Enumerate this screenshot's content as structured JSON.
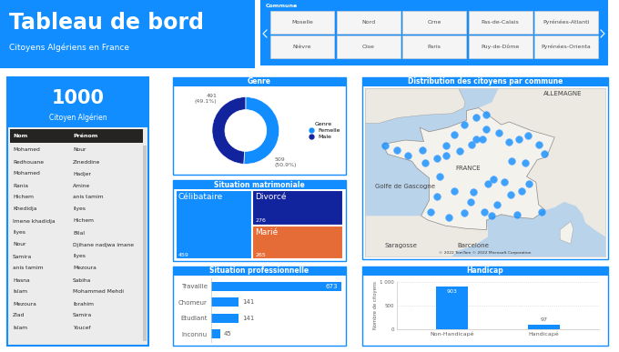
{
  "header": {
    "title": "Tableau de bord",
    "subtitle": "Citoyens Algériens en France"
  },
  "slicer": {
    "title": "Commune",
    "items": [
      "Moselle",
      "Nord",
      "Orne",
      "Pas-de-Calais",
      "Pyrénées-Atlanti",
      "Nièvre",
      "Oise",
      "Paris",
      "Puy-de-Dôme",
      "Pyrénées-Orienta"
    ]
  },
  "card": {
    "value": 1000,
    "label": "Citoyen Algérien"
  },
  "table": {
    "columns": [
      "Nom",
      "Prénom"
    ],
    "rows": [
      [
        "Mohamed",
        "Nour"
      ],
      [
        "Redhouane",
        "Zineddine"
      ],
      [
        "Mohamed",
        "Hadjer"
      ],
      [
        "Rania",
        "Amine"
      ],
      [
        "Hichem",
        "anis tamim"
      ],
      [
        "Khedidja",
        "Ilyes"
      ],
      [
        "Imene khadidja",
        "Hichem"
      ],
      [
        "Ilyes",
        "Bilal"
      ],
      [
        "Nour",
        "Djihane nadjwa imane"
      ],
      [
        "Samira",
        "Ilyes"
      ],
      [
        "anis tamim",
        "Mezoura"
      ],
      [
        "Hasna",
        "Sabiha"
      ],
      [
        "Islam",
        "Mohammed Mehdi"
      ],
      [
        "Mezoura",
        "Ibrahim"
      ],
      [
        "Ziad",
        "Samira"
      ],
      [
        "Islam",
        "Youcef"
      ]
    ]
  },
  "chart_data": [
    {
      "type": "pie",
      "title": "Genre",
      "categories": [
        "Femelle",
        "Male"
      ],
      "values": [
        509,
        491
      ],
      "value_labels": [
        "509 (50.9%)",
        "491 (49.1%)"
      ],
      "colors": [
        "#118dff",
        "#12239e"
      ],
      "legend": "right",
      "legend_title": "Genre",
      "data_labels": true
    },
    {
      "type": "treemap",
      "title": "Situation matrimoniale",
      "categories": [
        "Célibataire",
        "Divorcé",
        "Marié"
      ],
      "values": [
        459,
        276,
        265
      ],
      "colors": [
        "#118dff",
        "#12239e",
        "#e66c37"
      ],
      "data_labels": true
    },
    {
      "type": "bar",
      "orientation": "horizontal",
      "title": "Situation professionnelle",
      "categories": [
        "Travaille",
        "Chomeur",
        "Etudiant",
        "Inconnu"
      ],
      "values": [
        673,
        141,
        141,
        45
      ],
      "color": "#118dff",
      "xlim": [
        0,
        673
      ],
      "data_labels": true,
      "tick_labels": "y"
    },
    {
      "type": "map",
      "title": "Distribution des citoyens par commune",
      "color": "#118dff",
      "xlim": [
        -6,
        12
      ],
      "ylim": [
        40.5,
        52.5
      ],
      "tick_labels": false,
      "points": [
        [
          -4.5,
          48.4
        ],
        [
          -3.6,
          48.1
        ],
        [
          -2.8,
          47.7
        ],
        [
          -1.7,
          48.1
        ],
        [
          -0.6,
          47.5
        ],
        [
          0.1,
          48.4
        ],
        [
          0.7,
          49.2
        ],
        [
          1.4,
          49.9
        ],
        [
          2.3,
          50.4
        ],
        [
          3.1,
          50.6
        ],
        [
          3.1,
          49.6
        ],
        [
          2.35,
          48.85
        ],
        [
          2.0,
          48.5
        ],
        [
          2.8,
          48.9
        ],
        [
          4.0,
          49.3
        ],
        [
          4.8,
          48.7
        ],
        [
          5.5,
          48.9
        ],
        [
          6.2,
          49.1
        ],
        [
          7.0,
          48.5
        ],
        [
          7.4,
          47.8
        ],
        [
          6.0,
          47.2
        ],
        [
          5.0,
          47.3
        ],
        [
          4.4,
          45.8
        ],
        [
          3.2,
          45.7
        ],
        [
          5.7,
          45.2
        ],
        [
          4.9,
          44.9
        ],
        [
          6.3,
          45.7
        ],
        [
          3.9,
          44.2
        ],
        [
          2.9,
          43.7
        ],
        [
          1.9,
          44.4
        ],
        [
          1.4,
          43.6
        ],
        [
          0.3,
          43.3
        ],
        [
          -0.6,
          44.8
        ],
        [
          -1.1,
          43.7
        ],
        [
          -0.4,
          46.2
        ],
        [
          -1.5,
          47.2
        ],
        [
          0.7,
          45.2
        ],
        [
          2.1,
          45.1
        ],
        [
          5.4,
          43.5
        ],
        [
          7.2,
          43.7
        ],
        [
          3.5,
          43.4
        ],
        [
          3.6,
          46.0
        ],
        [
          0.1,
          47.7
        ],
        [
          1.1,
          48.0
        ]
      ],
      "annotations": [
        {
          "text": "ALLEMAGNE",
          "x": 8.8,
          "y": 52.1
        },
        {
          "text": "FRANCE",
          "x": 1.7,
          "y": 46.8
        },
        {
          "text": "Golfe de Gascogne",
          "x": -3.0,
          "y": 45.5
        },
        {
          "text": "Saragosse",
          "x": -3.3,
          "y": 41.3
        },
        {
          "text": "Barcelone",
          "x": 2.1,
          "y": 41.3
        }
      ],
      "attribution": "© 2022 TomTom © 2022 Microsoft Corporation"
    },
    {
      "type": "bar",
      "title": "Handicap",
      "categories": [
        "Non-Handicapé",
        "Handicapé"
      ],
      "values": [
        903,
        97
      ],
      "color": "#118dff",
      "ylabel": "Nombre de citoyens",
      "ylim": [
        0,
        1000
      ],
      "yticks": [
        0,
        500,
        {
          "value": 1000,
          "label": "1 000"
        }
      ],
      "grid": true,
      "data_labels": true
    }
  ]
}
